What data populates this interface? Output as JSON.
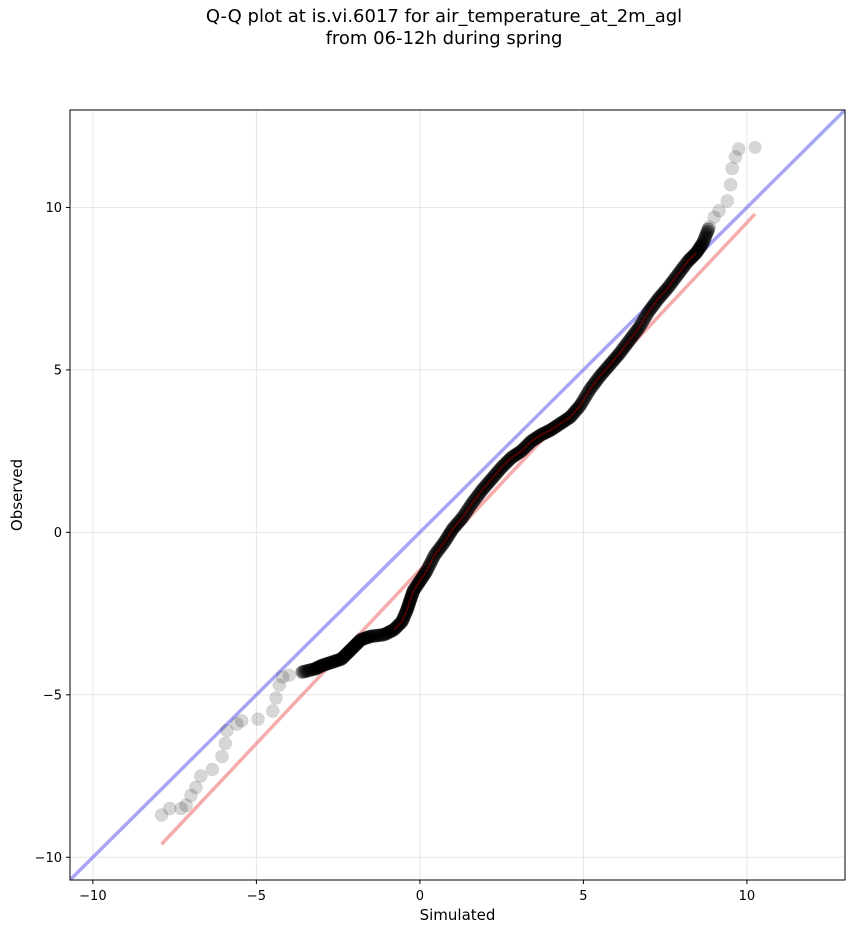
{
  "title": {
    "line1": "Q-Q plot at is.vi.6017 for air_temperature_at_2m_agl",
    "line2": "from 06-12h during spring"
  },
  "chart_data": {
    "type": "scatter",
    "title": "Q-Q plot at is.vi.6017 for air_temperature_at_2m_agl from 06-12h during spring",
    "xlabel": "Simulated",
    "ylabel": "Observed",
    "xlim": [
      -10.7,
      13.0
    ],
    "ylim": [
      -10.7,
      13.0
    ],
    "xticks": [
      -10,
      -5,
      0,
      5,
      10
    ],
    "yticks": [
      -10,
      -5,
      0,
      5,
      10
    ],
    "xtick_labels": [
      "−10",
      "−5",
      "0",
      "5",
      "10"
    ],
    "ytick_labels": [
      "−10",
      "−5",
      "0",
      "5",
      "10"
    ],
    "grid": true,
    "reference_line": {
      "slope": 1,
      "intercept": 0,
      "color": "#6a6aef"
    },
    "fit_line": {
      "x": [
        -7.9,
        10.25
      ],
      "y": [
        -9.6,
        9.8
      ],
      "color": "#f08080"
    },
    "series": [
      {
        "points": [
          [
            -7.9,
            -8.7
          ],
          [
            -7.65,
            -8.5
          ],
          [
            -7.3,
            -8.5
          ],
          [
            -7.15,
            -8.4
          ],
          [
            -7.0,
            -8.1
          ],
          [
            -6.85,
            -7.85
          ],
          [
            -6.7,
            -7.5
          ],
          [
            -6.35,
            -7.3
          ],
          [
            -6.05,
            -6.9
          ],
          [
            -5.95,
            -6.5
          ],
          [
            -5.9,
            -6.1
          ],
          [
            -5.6,
            -5.9
          ],
          [
            -5.45,
            -5.8
          ],
          [
            -4.95,
            -5.75
          ],
          [
            -4.5,
            -5.5
          ],
          [
            -4.4,
            -5.1
          ],
          [
            -4.3,
            -4.7
          ],
          [
            -4.2,
            -4.45
          ],
          [
            -4.0,
            -4.4
          ],
          [
            -3.6,
            -4.3
          ],
          [
            -3.2,
            -4.2
          ],
          [
            -3.0,
            -4.1
          ],
          [
            -2.7,
            -4.0
          ],
          [
            -2.4,
            -3.9
          ],
          [
            -2.2,
            -3.7
          ],
          [
            -2.0,
            -3.5
          ],
          [
            -1.8,
            -3.3
          ],
          [
            -1.5,
            -3.2
          ],
          [
            -1.1,
            -3.15
          ],
          [
            -0.8,
            -3.0
          ],
          [
            -0.55,
            -2.75
          ],
          [
            -0.4,
            -2.4
          ],
          [
            -0.3,
            -2.1
          ],
          [
            -0.2,
            -1.8
          ],
          [
            0.0,
            -1.5
          ],
          [
            0.2,
            -1.2
          ],
          [
            0.45,
            -0.7
          ],
          [
            0.75,
            -0.3
          ],
          [
            1.0,
            0.1
          ],
          [
            1.3,
            0.45
          ],
          [
            1.6,
            0.9
          ],
          [
            1.9,
            1.3
          ],
          [
            2.2,
            1.65
          ],
          [
            2.5,
            2.0
          ],
          [
            2.8,
            2.3
          ],
          [
            3.1,
            2.5
          ],
          [
            3.4,
            2.8
          ],
          [
            3.7,
            3.0
          ],
          [
            4.0,
            3.15
          ],
          [
            4.3,
            3.35
          ],
          [
            4.6,
            3.55
          ],
          [
            4.9,
            3.9
          ],
          [
            5.2,
            4.4
          ],
          [
            5.5,
            4.8
          ],
          [
            5.8,
            5.15
          ],
          [
            6.1,
            5.5
          ],
          [
            6.4,
            5.9
          ],
          [
            6.7,
            6.3
          ],
          [
            7.0,
            6.8
          ],
          [
            7.3,
            7.2
          ],
          [
            7.6,
            7.55
          ],
          [
            7.9,
            7.95
          ],
          [
            8.2,
            8.35
          ],
          [
            8.45,
            8.6
          ],
          [
            8.65,
            8.9
          ],
          [
            8.85,
            9.4
          ],
          [
            9.0,
            9.7
          ],
          [
            9.15,
            9.9
          ],
          [
            9.4,
            10.2
          ],
          [
            9.5,
            10.7
          ],
          [
            9.55,
            11.2
          ],
          [
            9.65,
            11.55
          ],
          [
            9.75,
            11.8
          ],
          [
            10.25,
            11.85
          ]
        ]
      }
    ]
  }
}
